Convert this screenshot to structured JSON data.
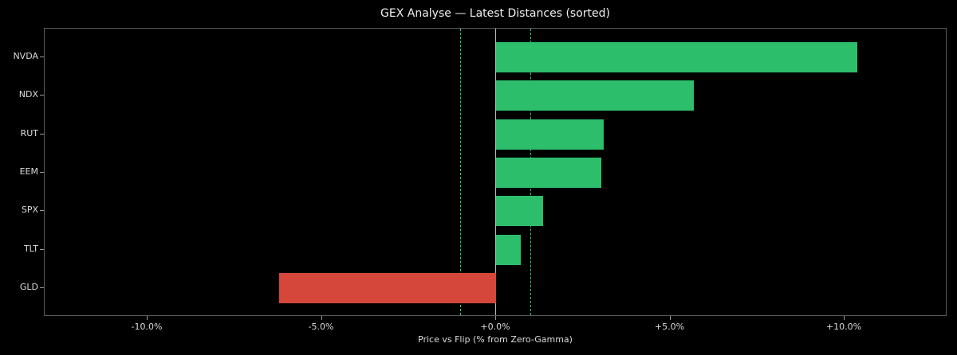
{
  "chart_data": {
    "type": "bar",
    "orientation": "horizontal",
    "title": "GEX Analyse — Latest Distances (sorted)",
    "xlabel": "Price vs Flip (% from Zero-Gamma)",
    "ylabel": "",
    "categories": [
      "NVDA",
      "NDX",
      "RUT",
      "EEM",
      "SPX",
      "TLT",
      "GLD"
    ],
    "values": [
      10.37,
      5.67,
      3.09,
      3.02,
      1.35,
      0.71,
      -6.22
    ],
    "xlim": [
      -12.9,
      13.0
    ],
    "xticks": [
      -10.0,
      -5.0,
      0.0,
      5.0,
      10.0
    ],
    "xtick_labels": [
      "-10.0%",
      "-5.0%",
      "+0.0%",
      "+5.0%",
      "+10.0%"
    ],
    "reference_lines": [
      {
        "x": 0.0,
        "style": "solid",
        "color": "#bdbdbd"
      },
      {
        "x": -1.0,
        "style": "dashed",
        "color": "#2ecc71"
      },
      {
        "x": 1.0,
        "style": "dashed",
        "color": "#2ecc71"
      }
    ],
    "colors": {
      "positive": "#2dbe6c",
      "negative": "#d5473a",
      "background": "#000000"
    },
    "grid": false,
    "legend": null
  }
}
